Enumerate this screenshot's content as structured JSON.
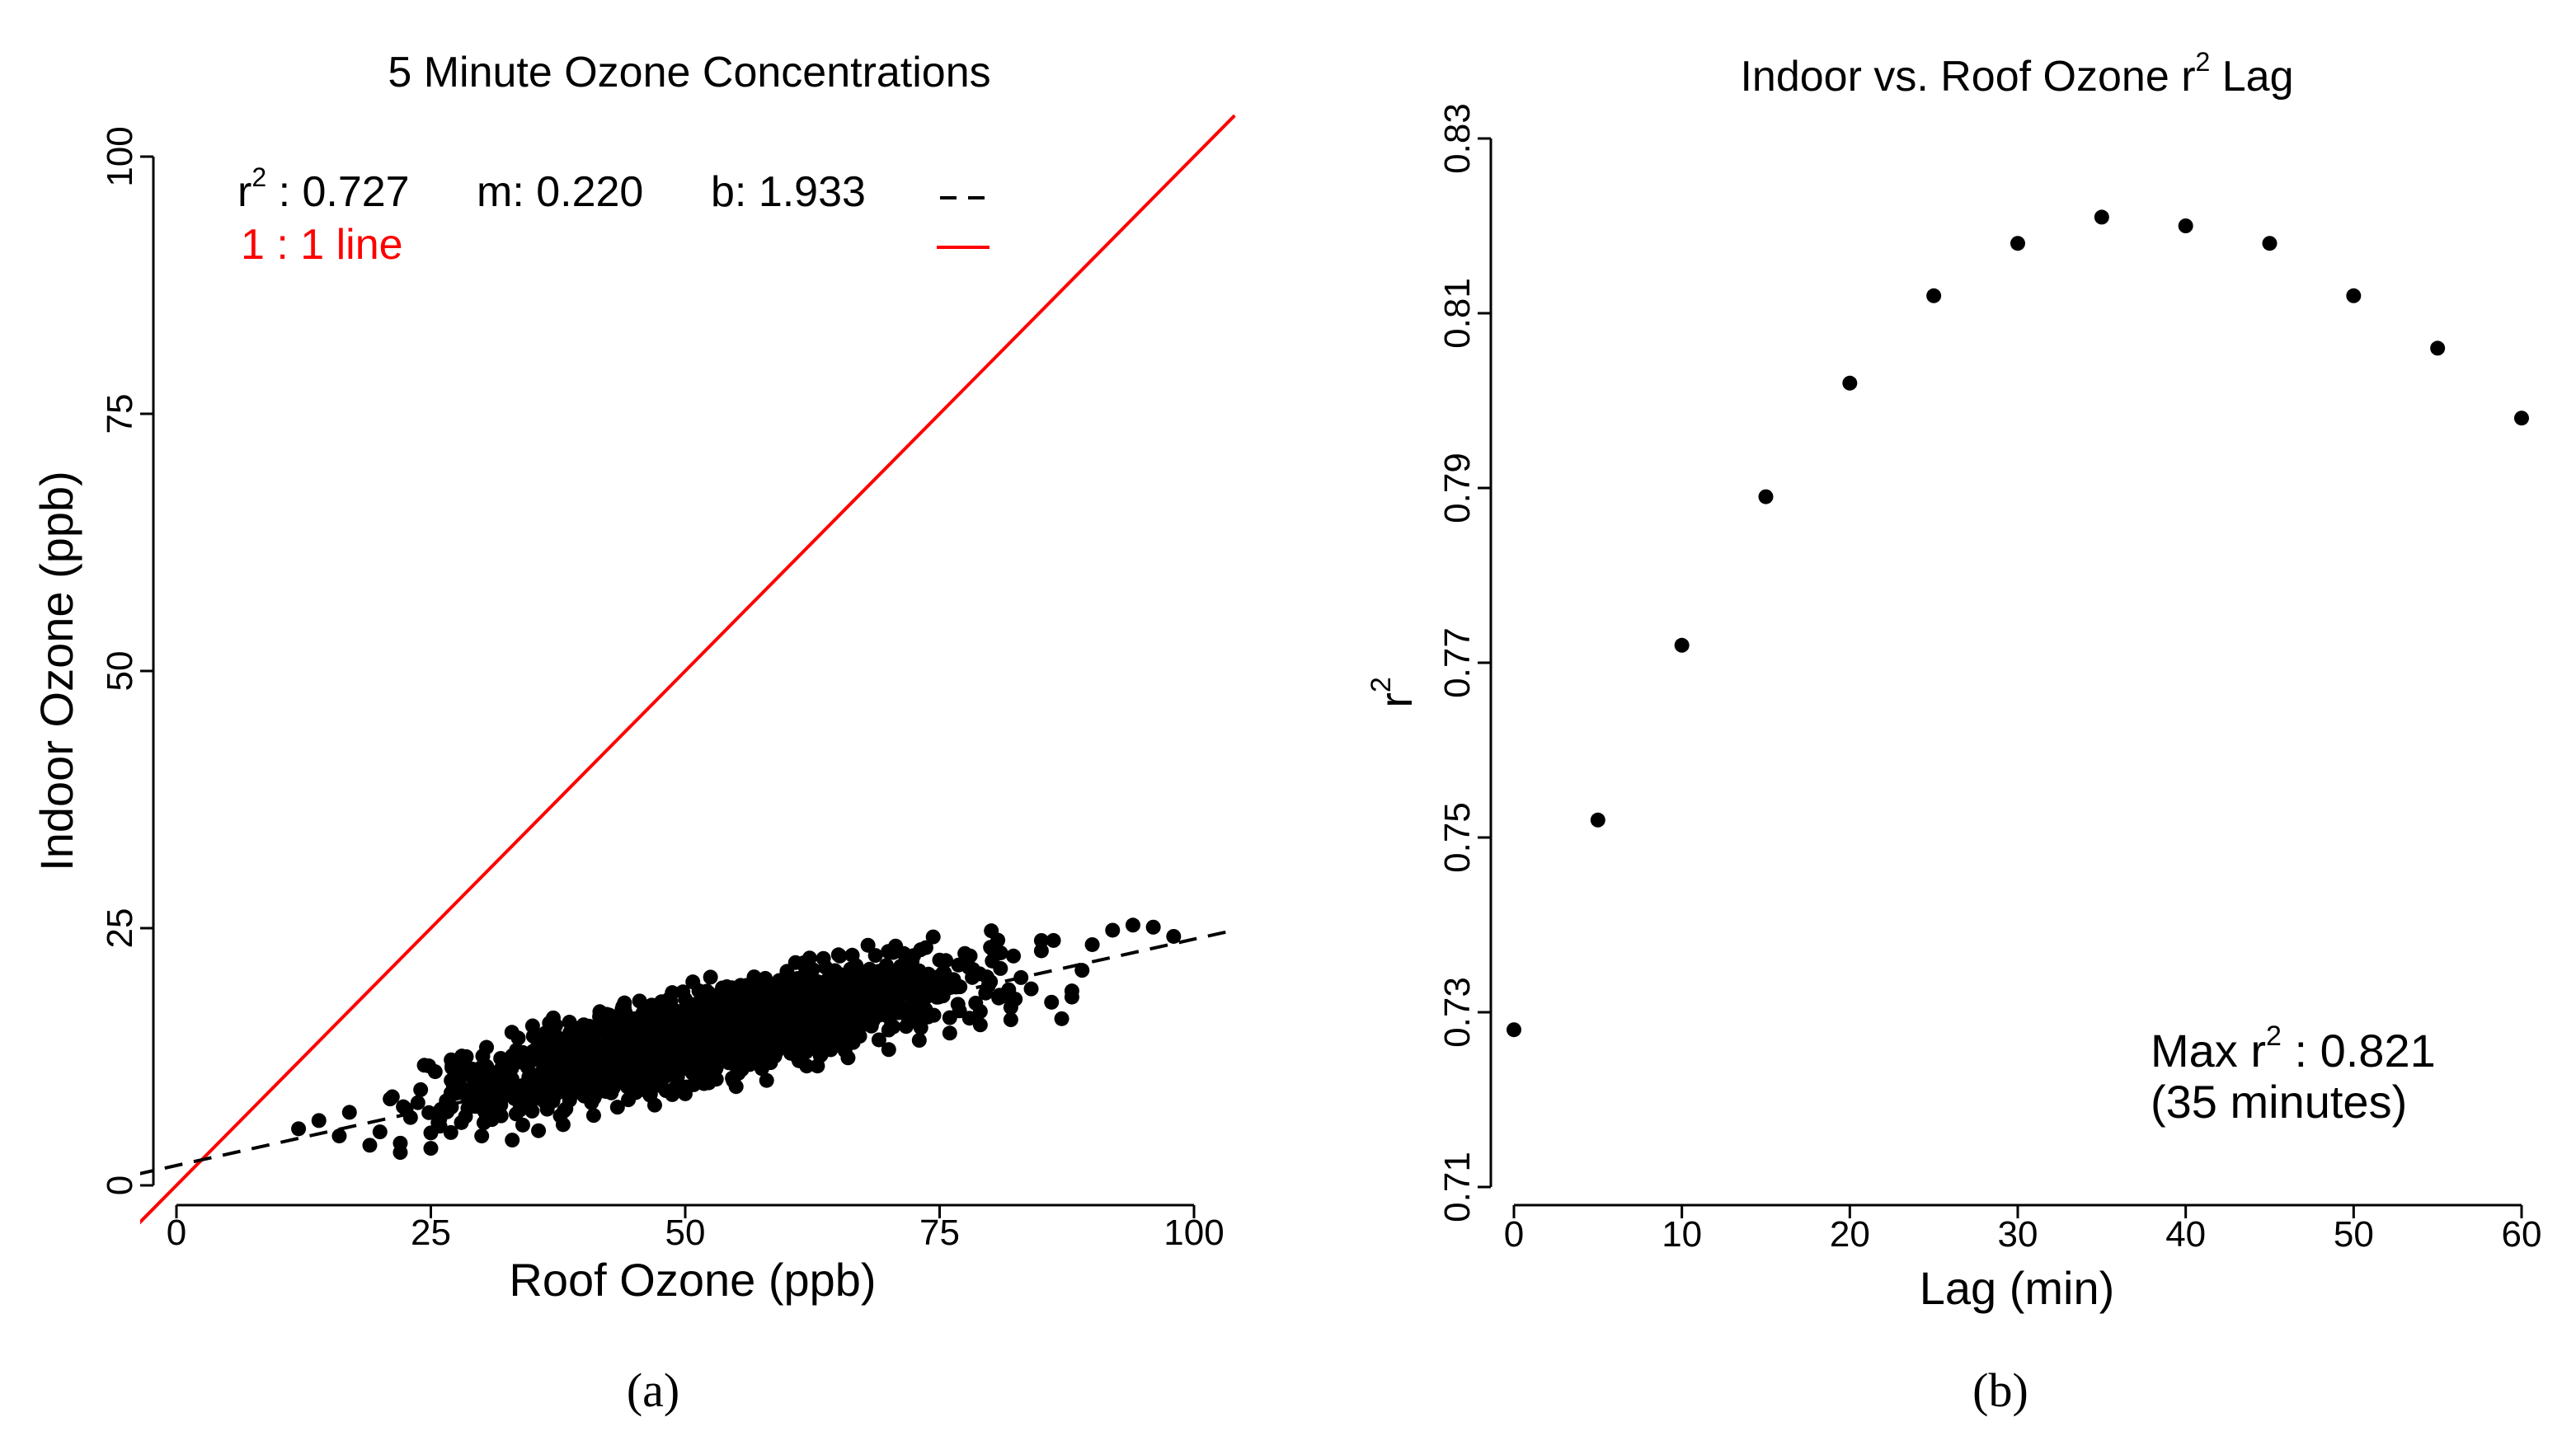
{
  "chart_data": [
    {
      "type": "scatter",
      "panel_label": "(a)",
      "title": "5 Minute Ozone Concentrations",
      "xlabel": "Roof Ozone (ppb)",
      "ylabel": "Indoor Ozone (ppb)",
      "xlim": [
        0,
        100
      ],
      "ylim": [
        0,
        100
      ],
      "xticks": [
        "0",
        "25",
        "50",
        "75",
        "100"
      ],
      "yticks": [
        "0",
        "25",
        "50",
        "75",
        "100"
      ],
      "grid": false,
      "legend_placement": "top-left",
      "legend": {
        "r2_symbol": "r",
        "r2_superscript": "2",
        "r2_rest": " : 0.727",
        "slope": "m: 0.220",
        "intercept": "b: 1.933",
        "one_to_one": "1 : 1 line"
      },
      "regression": {
        "r2": 0.727,
        "m": 0.22,
        "b": 1.933,
        "color": "#000000",
        "style": "dashed"
      },
      "one_to_one_line": {
        "color": "#ff0000"
      },
      "point_color": "#000000",
      "series": [
        {
          "values": [
            [
              12,
              5.5
            ],
            [
              14,
              6.3
            ],
            [
              16,
              4.8
            ],
            [
              17,
              7.1
            ],
            [
              19,
              3.9
            ],
            [
              20,
              5.2
            ],
            [
              21,
              8.4
            ],
            [
              22,
              4.1
            ],
            [
              23,
              6.6
            ],
            [
              24,
              9.3
            ],
            [
              25,
              5.1
            ],
            [
              26,
              7.4
            ],
            [
              27,
              10.2
            ],
            [
              28,
              6.1
            ],
            [
              29,
              8.3
            ],
            [
              30,
              11.5
            ],
            [
              31,
              6.4
            ],
            [
              32,
              9.1
            ],
            [
              33,
              12.6
            ],
            [
              34,
              7.8
            ],
            [
              35,
              10.4
            ],
            [
              36,
              13.1
            ],
            [
              37,
              8.2
            ],
            [
              38,
              11.2
            ],
            [
              39,
              14.3
            ],
            [
              40,
              9.0
            ],
            [
              41,
              12.1
            ],
            [
              42,
              15.0
            ],
            [
              43,
              9.7
            ],
            [
              44,
              12.8
            ],
            [
              45,
              16.2
            ],
            [
              46,
              10.3
            ],
            [
              47,
              13.4
            ],
            [
              48,
              16.8
            ],
            [
              49,
              11.1
            ],
            [
              50,
              14.2
            ],
            [
              51,
              17.6
            ],
            [
              52,
              11.8
            ],
            [
              53,
              14.9
            ],
            [
              54,
              18.1
            ],
            [
              55,
              12.3
            ],
            [
              56,
              15.5
            ],
            [
              57,
              18.7
            ],
            [
              58,
              12.9
            ],
            [
              59,
              16.1
            ],
            [
              60,
              19.2
            ],
            [
              61,
              13.5
            ],
            [
              62,
              16.6
            ],
            [
              63,
              19.8
            ],
            [
              64,
              14.0
            ],
            [
              65,
              17.2
            ],
            [
              66,
              20.3
            ],
            [
              67,
              14.6
            ],
            [
              68,
              17.7
            ],
            [
              69,
              20.8
            ],
            [
              70,
              15.1
            ],
            [
              71,
              18.2
            ],
            [
              72,
              21.4
            ],
            [
              73,
              15.7
            ],
            [
              74,
              18.8
            ],
            [
              75,
              21.9
            ],
            [
              76,
              16.3
            ],
            [
              77,
              19.3
            ],
            [
              78,
              22.3
            ],
            [
              79,
              16.9
            ],
            [
              80,
              19.8
            ],
            [
              81,
              22.6
            ],
            [
              82,
              17.3
            ],
            [
              83,
              20.2
            ],
            [
              84,
              19.1
            ],
            [
              85,
              22.8
            ],
            [
              86,
              17.8
            ],
            [
              87,
              16.2
            ],
            [
              88,
              18.3
            ],
            [
              89,
              20.9
            ],
            [
              90,
              23.4
            ],
            [
              92,
              24.8
            ],
            [
              94,
              25.3
            ],
            [
              96,
              25.1
            ],
            [
              98,
              24.2
            ],
            [
              22,
              3.2
            ],
            [
              25,
              3.6
            ],
            [
              27,
              12.2
            ],
            [
              30,
              4.8
            ],
            [
              33,
              4.4
            ],
            [
              35,
              15.5
            ],
            [
              38,
              5.9
            ],
            [
              41,
              6.8
            ],
            [
              44,
              17.3
            ],
            [
              47,
              7.8
            ],
            [
              50,
              8.9
            ],
            [
              52,
              18.6
            ],
            [
              55,
              9.6
            ],
            [
              58,
              10.2
            ],
            [
              60,
              20.8
            ],
            [
              63,
              11.6
            ],
            [
              66,
              12.4
            ],
            [
              70,
              13.2
            ],
            [
              73,
              14.1
            ],
            [
              76,
              14.8
            ],
            [
              79,
              15.6
            ],
            [
              82,
              16.1
            ],
            [
              85,
              23.8
            ],
            [
              88,
              18.9
            ]
          ]
        }
      ]
    },
    {
      "type": "scatter",
      "panel_label": "(b)",
      "title_main": "Indoor vs. Roof Ozone r",
      "title_sup": "2",
      "title_end": " Lag",
      "xlabel": "Lag (min)",
      "ylabel_main": "r",
      "ylabel_sup": "2",
      "xlim": [
        0,
        60
      ],
      "ylim": [
        0.71,
        0.83
      ],
      "xticks": [
        "0",
        "10",
        "20",
        "30",
        "40",
        "50",
        "60"
      ],
      "yticks": [
        "0.71",
        "0.73",
        "0.75",
        "0.77",
        "0.79",
        "0.81",
        "0.83"
      ],
      "grid": false,
      "annotation": {
        "line1_main": "Max r",
        "line1_sup": "2",
        "line1_end": " : 0.821",
        "line2": "(35 minutes)"
      },
      "point_color": "#000000",
      "x": [
        0,
        5,
        10,
        15,
        20,
        25,
        30,
        35,
        40,
        45,
        50,
        55,
        60
      ],
      "y": [
        0.728,
        0.752,
        0.772,
        0.789,
        0.802,
        0.812,
        0.818,
        0.821,
        0.82,
        0.818,
        0.812,
        0.806,
        0.798
      ]
    }
  ]
}
